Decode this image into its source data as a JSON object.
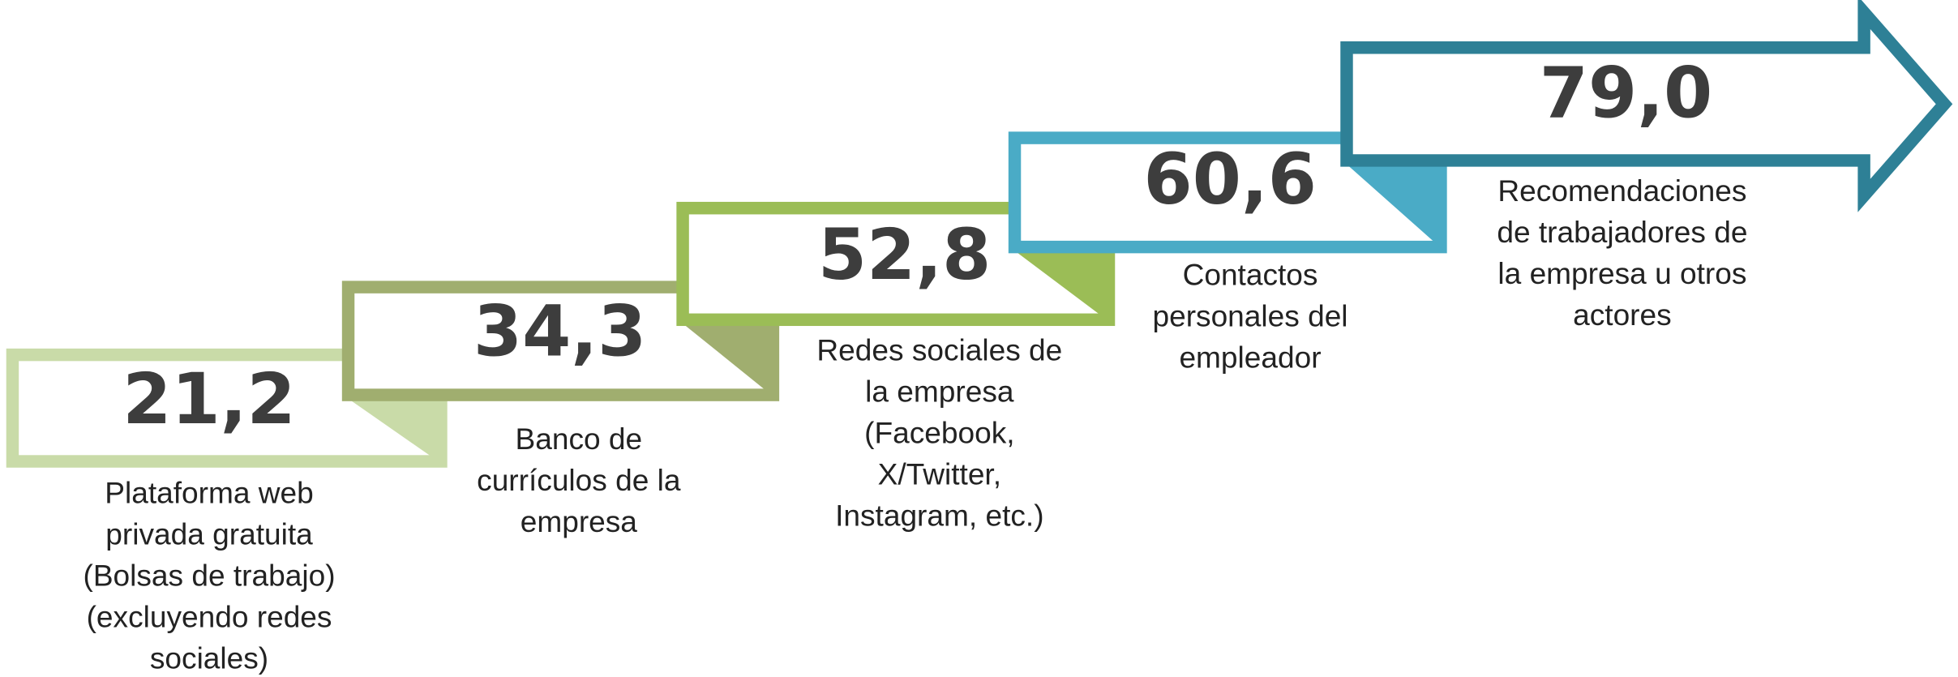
{
  "steps": [
    {
      "value": "21,2",
      "color": "#c9dba8",
      "label": [
        "Plataforma web",
        "privada gratuita",
        "(Bolsas de trabajo)",
        "(excluyendo redes",
        "sociales)"
      ]
    },
    {
      "value": "34,3",
      "color": "#a0ae6f",
      "label": [
        "Banco de",
        "currículos de la",
        "empresa"
      ]
    },
    {
      "value": "52,8",
      "color": "#9bbd56",
      "label": [
        "Redes sociales de",
        "la empresa",
        "(Facebook,",
        "X/Twitter,",
        "Instagram, etc.)"
      ]
    },
    {
      "value": "60,6",
      "color": "#4aabc6",
      "label": [
        "Contactos",
        "personales del",
        "empleador"
      ]
    },
    {
      "value": "79,0",
      "color": "#2e8096",
      "label": [
        "Recomendaciones",
        "de trabajadores de",
        "la empresa u otros",
        "actores"
      ]
    }
  ]
}
